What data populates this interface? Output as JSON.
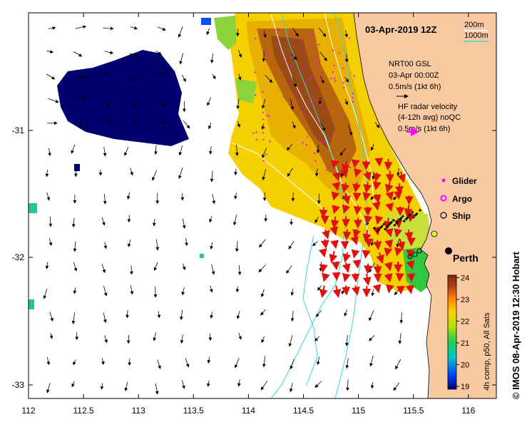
{
  "map": {
    "title": "03-Apr-2019 12Z",
    "x_ticks": [
      "112",
      "112.5",
      "113",
      "113.5",
      "114",
      "114.5",
      "115",
      "115.5",
      "116"
    ],
    "y_ticks": [
      "-31",
      "-32",
      "-33"
    ],
    "isobaths": [
      "200m",
      "1000m"
    ],
    "isobath_colors": [
      "#ffffff",
      "#3ad6d6"
    ],
    "land_color": "#f9c9a1",
    "cool_pool_color": "#00006e"
  },
  "legend": {
    "gsl_lines": [
      "NRT00 GSL",
      "03-Apr 00:00Z",
      "0.5m/s (1kt 6h)"
    ],
    "hf_lines": [
      "HF radar velocity",
      "(4-12h avg) noQC",
      "0.5m/s (1kt 6h)"
    ],
    "glider_label": "Glider",
    "argo_label": "Argo",
    "ship_label": "Ship",
    "glider_icon": "diamond-icon",
    "argo_icon": "hexagon-icon",
    "ship_icon": "circle-icon"
  },
  "city": {
    "name": "Perth"
  },
  "colorbar": {
    "ticks": [
      "19",
      "20",
      "21",
      "22",
      "23",
      "24"
    ],
    "label": "4h comp, p50, All Sats",
    "colors": [
      "#00006e",
      "#0050ff",
      "#00c8c8",
      "#20d050",
      "#b8e000",
      "#ffd000",
      "#ff8000",
      "#b04020",
      "#7a2a10"
    ]
  },
  "credit": "© IMOS 08-Apr-2019 12:30 Hobart"
}
